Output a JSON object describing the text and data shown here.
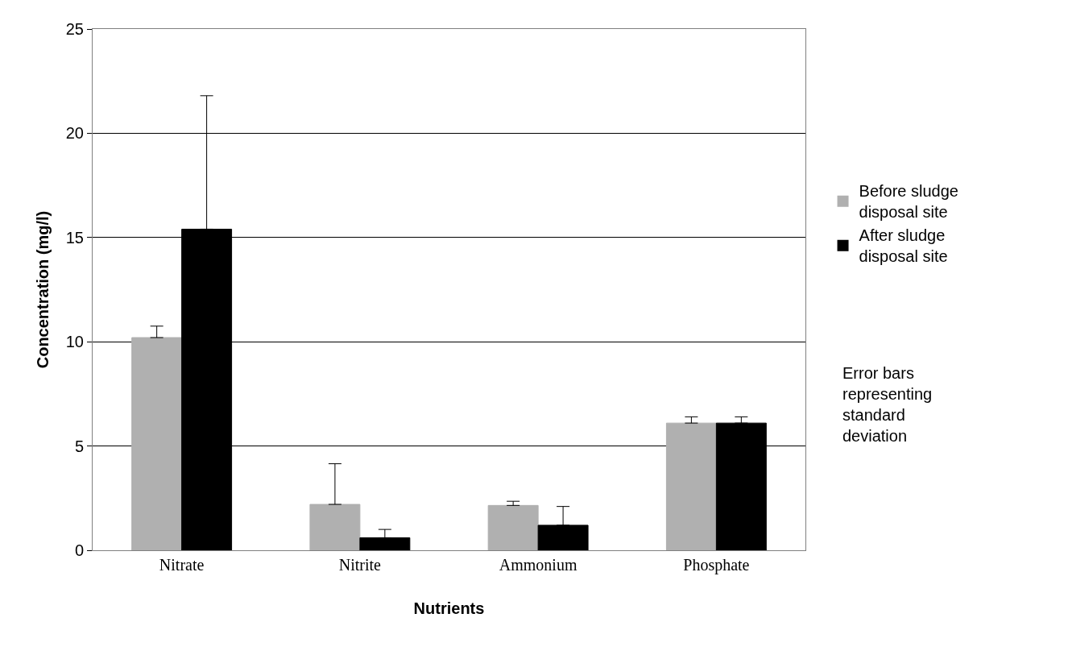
{
  "chart_data": {
    "type": "bar",
    "xlabel": "Nutrients",
    "ylabel": "Concentration (mg/l)",
    "categories": [
      "Nitrate",
      "Nitrite",
      "Ammonium",
      "Phosphate"
    ],
    "series": [
      {
        "name": "Before sludge disposal site",
        "color": "#b0b0b0",
        "values": [
          10.2,
          2.2,
          2.15,
          6.1
        ],
        "errors": [
          [
            10.2,
            10.75
          ],
          [
            2.2,
            4.15
          ],
          [
            2.15,
            2.35
          ],
          [
            6.1,
            6.4
          ]
        ]
      },
      {
        "name": "After sludge disposal site",
        "color": "#000000",
        "values": [
          15.4,
          0.6,
          1.2,
          6.1
        ],
        "errors": [
          [
            15.4,
            21.8
          ],
          [
            0.6,
            1.0
          ],
          [
            1.2,
            2.1
          ],
          [
            6.1,
            6.4
          ]
        ]
      }
    ],
    "annotations": [
      "Error bars representing standard deviation"
    ],
    "ylim": [
      0,
      25
    ],
    "yticks": [
      0,
      5,
      10,
      15,
      20,
      25
    ],
    "grid": "y",
    "legend": "right"
  }
}
